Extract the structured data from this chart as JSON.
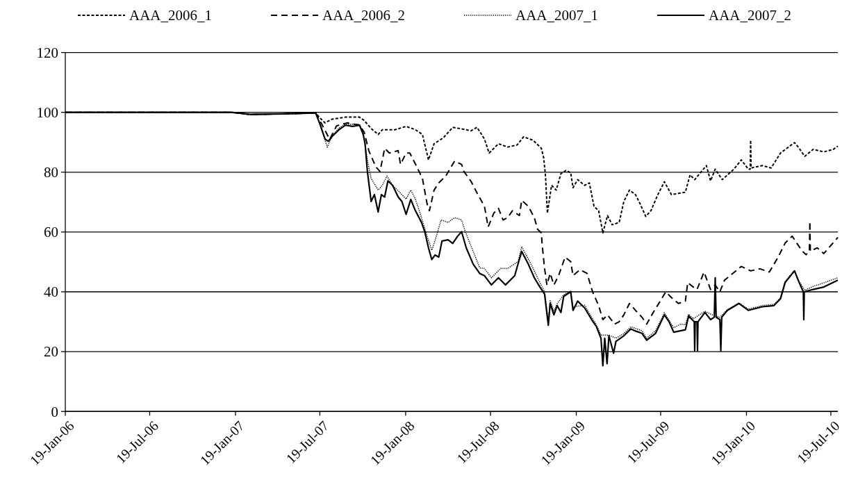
{
  "chart_data": {
    "type": "line",
    "xlim": [
      "2006-01-19",
      "2010-08-03"
    ],
    "xticks": [
      {
        "value": "2006-01-19",
        "label": "19-Jan-06"
      },
      {
        "value": "2006-07-19",
        "label": "19-Jul-06"
      },
      {
        "value": "2007-01-19",
        "label": "19-Jan-07"
      },
      {
        "value": "2007-07-19",
        "label": "19-Jul-07"
      },
      {
        "value": "2008-01-19",
        "label": "19-Jan-08"
      },
      {
        "value": "2008-07-19",
        "label": "19-Jul-08"
      },
      {
        "value": "2009-01-19",
        "label": "19-Jan-09"
      },
      {
        "value": "2009-07-19",
        "label": "19-Jul-09"
      },
      {
        "value": "2010-01-19",
        "label": "19-Jan-10"
      },
      {
        "value": "2010-07-19",
        "label": "19-Jul-10"
      }
    ],
    "ylim": [
      0,
      120
    ],
    "yticks": [
      0,
      20,
      40,
      60,
      80,
      100,
      120
    ],
    "grid": "y",
    "legend": "top",
    "series": [
      {
        "name": "AAA_2006_1",
        "color": "#000000",
        "line_style": "dashed",
        "x": [
          "2006-01-19",
          "2007-01-10",
          "2007-02-20",
          "2007-05-01",
          "2007-07-10",
          "2007-07-20",
          "2007-07-30",
          "2007-08-14",
          "2007-09-12",
          "2007-10-12",
          "2007-10-22",
          "2007-11-06",
          "2007-11-21",
          "2007-11-30",
          "2007-12-27",
          "2008-01-20",
          "2008-02-09",
          "2008-02-24",
          "2008-03-08",
          "2008-03-20",
          "2008-04-09",
          "2008-04-29",
          "2008-05-28",
          "2008-06-07",
          "2008-06-20",
          "2008-06-30",
          "2008-07-06",
          "2008-07-16",
          "2008-08-05",
          "2008-08-25",
          "2008-09-14",
          "2008-09-28",
          "2008-10-18",
          "2008-11-05",
          "2008-11-10",
          "2008-11-14",
          "2008-11-18",
          "2008-11-27",
          "2008-12-07",
          "2008-12-17",
          "2008-12-28",
          "2009-01-07",
          "2009-01-12",
          "2009-01-22",
          "2009-02-06",
          "2009-02-16",
          "2009-02-26",
          "2009-03-08",
          "2009-03-17",
          "2009-03-27",
          "2009-04-06",
          "2009-04-21",
          "2009-05-01",
          "2009-05-13",
          "2009-05-26",
          "2009-06-05",
          "2009-06-17",
          "2009-06-28",
          "2009-07-13",
          "2009-07-27",
          "2009-08-11",
          "2009-09-10",
          "2009-09-20",
          "2009-09-30",
          "2009-10-25",
          "2009-11-03",
          "2009-11-13",
          "2009-11-28",
          "2009-12-23",
          "2010-01-08",
          "2010-01-23",
          "2010-01-27",
          "2010-01-28",
          "2010-01-29",
          "2010-02-22",
          "2010-03-13",
          "2010-04-02",
          "2010-05-02",
          "2010-05-12",
          "2010-05-24",
          "2010-06-11",
          "2010-07-04",
          "2010-07-24",
          "2010-08-03"
        ],
        "values": [
          100,
          100,
          99.3,
          99.5,
          99.8,
          98,
          96.5,
          97.7,
          98.4,
          98.4,
          97.3,
          94.6,
          92.6,
          94.2,
          94.2,
          95.3,
          94.2,
          92.6,
          84.1,
          89.5,
          91.5,
          95,
          94.2,
          93.8,
          95,
          92.6,
          91.1,
          86.4,
          89.5,
          88.4,
          89.1,
          91.8,
          90.7,
          88,
          84.9,
          78.7,
          66.3,
          75.6,
          74,
          79.5,
          80.6,
          79.8,
          74.8,
          77.5,
          75.6,
          76.4,
          68.6,
          67.1,
          59.7,
          65.5,
          62.4,
          63.2,
          70.2,
          74,
          72.5,
          69.4,
          65.2,
          67.1,
          72.5,
          76.8,
          72.5,
          73.3,
          79.1,
          77.5,
          82.2,
          77.1,
          81,
          77.5,
          81,
          84.1,
          81,
          81,
          90.7,
          81.4,
          82.2,
          81.4,
          86.4,
          89.9,
          88,
          85.3,
          87.6,
          86.8,
          87.6,
          88.7
        ]
      },
      {
        "name": "AAA_2006_2",
        "color": "#000000",
        "line_style": "dashed",
        "x": [
          "2006-01-19",
          "2007-01-10",
          "2007-02-20",
          "2007-05-01",
          "2007-07-10",
          "2007-07-20",
          "2007-07-30",
          "2007-08-09",
          "2007-08-24",
          "2007-09-17",
          "2007-10-12",
          "2007-10-22",
          "2007-11-01",
          "2007-11-16",
          "2007-11-25",
          "2007-12-05",
          "2007-12-15",
          "2008-01-03",
          "2008-01-08",
          "2008-01-20",
          "2008-01-28",
          "2008-02-12",
          "2008-02-24",
          "2008-03-05",
          "2008-03-10",
          "2008-03-20",
          "2008-03-30",
          "2008-04-14",
          "2008-05-03",
          "2008-05-18",
          "2008-05-23",
          "2008-06-07",
          "2008-06-22",
          "2008-07-06",
          "2008-07-14",
          "2008-07-26",
          "2008-08-05",
          "2008-08-15",
          "2008-08-25",
          "2008-09-04",
          "2008-09-19",
          "2008-09-24",
          "2008-10-08",
          "2008-10-21",
          "2008-10-28",
          "2008-11-05",
          "2008-11-07",
          "2008-11-12",
          "2008-11-17",
          "2008-11-24",
          "2008-12-02",
          "2008-12-12",
          "2008-12-26",
          "2009-01-07",
          "2009-01-12",
          "2009-01-27",
          "2009-02-11",
          "2009-02-23",
          "2009-03-08",
          "2009-03-17",
          "2009-03-27",
          "2009-04-11",
          "2009-04-21",
          "2009-05-01",
          "2009-05-13",
          "2009-05-26",
          "2009-06-09",
          "2009-06-19",
          "2009-07-03",
          "2009-07-18",
          "2009-07-30",
          "2009-08-11",
          "2009-08-26",
          "2009-09-10",
          "2009-09-15",
          "2009-09-30",
          "2009-10-05",
          "2009-10-20",
          "2009-11-03",
          "2009-11-13",
          "2009-11-23",
          "2009-12-03",
          "2009-12-18",
          "2010-01-08",
          "2010-01-28",
          "2010-02-17",
          "2010-03-09",
          "2010-03-28",
          "2010-04-12",
          "2010-04-27",
          "2010-05-07",
          "2010-05-17",
          "2010-05-27",
          "2010-06-03",
          "2010-06-04",
          "2010-06-05",
          "2010-06-20",
          "2010-07-04",
          "2010-07-19",
          "2010-08-03"
        ],
        "values": [
          100,
          100,
          99.3,
          99.5,
          99.8,
          97,
          94,
          91,
          95.5,
          96.5,
          95.7,
          93.4,
          87.2,
          81.8,
          80.2,
          88,
          86.4,
          87.2,
          82.6,
          86.4,
          86.4,
          81.8,
          77.9,
          69.4,
          67.1,
          74,
          76.4,
          78.7,
          83.7,
          82.6,
          80.2,
          77,
          72.5,
          68.6,
          61.7,
          66.3,
          67.9,
          64,
          64.8,
          67.1,
          65.5,
          70.6,
          68.6,
          64.8,
          60.9,
          59.7,
          55.5,
          47.8,
          42.3,
          46.2,
          42.3,
          45.4,
          51.6,
          50.1,
          45.4,
          47.4,
          46.2,
          40,
          35.4,
          30.7,
          32.3,
          29.2,
          30,
          32.3,
          36.1,
          33.8,
          31.5,
          29.2,
          33.1,
          36.9,
          40,
          38.1,
          36.1,
          36.9,
          43.1,
          41.2,
          40.8,
          46.6,
          40.8,
          42.3,
          40,
          43.9,
          45.8,
          48.5,
          47,
          47.7,
          46.6,
          51.6,
          56.3,
          58.6,
          56.3,
          53.9,
          52.4,
          53.6,
          63.6,
          53.6,
          54.7,
          52.8,
          55.5,
          58.2
        ]
      },
      {
        "name": "AAA_2007_1",
        "color": "#000000",
        "line_style": "dotted",
        "x": [
          "2006-01-19",
          "2007-01-10",
          "2007-02-20",
          "2007-05-01",
          "2007-07-10",
          "2007-07-20",
          "2007-08-04",
          "2007-08-14",
          "2007-08-29",
          "2007-09-12",
          "2007-10-12",
          "2007-10-20",
          "2007-10-29",
          "2007-11-06",
          "2007-11-21",
          "2007-11-30",
          "2007-12-10",
          "2007-12-22",
          "2008-01-06",
          "2008-01-20",
          "2008-01-30",
          "2008-02-09",
          "2008-02-22",
          "2008-03-05",
          "2008-03-15",
          "2008-03-25",
          "2008-04-04",
          "2008-04-19",
          "2008-05-03",
          "2008-05-18",
          "2008-05-26",
          "2008-06-07",
          "2008-06-26",
          "2008-07-06",
          "2008-07-21",
          "2008-08-10",
          "2008-08-25",
          "2008-09-16",
          "2008-09-24",
          "2008-10-13",
          "2008-11-02",
          "2008-11-12",
          "2008-11-20",
          "2008-11-24",
          "2008-12-02",
          "2008-12-09",
          "2008-12-23",
          "2009-01-07",
          "2009-01-12",
          "2009-02-06",
          "2009-02-21",
          "2009-03-03",
          "2009-03-13",
          "2009-03-30",
          "2009-04-14",
          "2009-05-01",
          "2009-05-16",
          "2009-06-09",
          "2009-06-19",
          "2009-07-08",
          "2009-07-27",
          "2009-08-16",
          "2009-08-31",
          "2009-09-10",
          "2009-09-17",
          "2009-09-27",
          "2009-10-22",
          "2009-11-11",
          "2009-11-23",
          "2009-12-09",
          "2010-01-03",
          "2010-01-23",
          "2010-02-22",
          "2010-03-19",
          "2010-04-02",
          "2010-04-12",
          "2010-05-02",
          "2010-05-12",
          "2010-05-24",
          "2010-06-11",
          "2010-07-04",
          "2010-08-03"
        ],
        "values": [
          100,
          100,
          99.3,
          99.5,
          99.8,
          95.7,
          88.4,
          91.9,
          94.8,
          96,
          96,
          93,
          84,
          77.9,
          74,
          75.6,
          78.7,
          75.6,
          73.3,
          71,
          74,
          71,
          64.8,
          58.6,
          53.9,
          58.6,
          64,
          63.2,
          64.8,
          64,
          60.1,
          55.4,
          48,
          47.8,
          44.7,
          47.8,
          47.8,
          50.1,
          55.1,
          49.5,
          43.1,
          40,
          30,
          37,
          33.5,
          36,
          39,
          40.3,
          35,
          35.5,
          31.5,
          29,
          25.5,
          25.5,
          24.5,
          26,
          28.3,
          27,
          24.5,
          27,
          33,
          28,
          29.2,
          29,
          32.5,
          31,
          33.5,
          32,
          31.5,
          34,
          36.3,
          34.2,
          35.4,
          35.8,
          38,
          43.5,
          47.2,
          43.5,
          40.5,
          41.8,
          43,
          44.7
        ]
      },
      {
        "name": "AAA_2007_2",
        "color": "#000000",
        "line_style": "solid",
        "x": [
          "2006-01-19",
          "2007-01-10",
          "2007-02-20",
          "2007-05-01",
          "2007-07-10",
          "2007-07-20",
          "2007-07-30",
          "2007-08-06",
          "2007-08-14",
          "2007-08-29",
          "2007-09-12",
          "2007-09-27",
          "2007-10-12",
          "2007-10-20",
          "2007-10-24",
          "2007-10-29",
          "2007-11-06",
          "2007-11-13",
          "2007-11-21",
          "2007-11-28",
          "2007-12-05",
          "2007-12-12",
          "2007-12-22",
          "2008-01-03",
          "2008-01-11",
          "2008-01-20",
          "2008-01-30",
          "2008-02-09",
          "2008-02-22",
          "2008-02-29",
          "2008-03-08",
          "2008-03-15",
          "2008-03-22",
          "2008-03-30",
          "2008-04-06",
          "2008-04-19",
          "2008-04-29",
          "2008-05-09",
          "2008-05-18",
          "2008-05-28",
          "2008-06-12",
          "2008-06-26",
          "2008-07-06",
          "2008-07-21",
          "2008-08-05",
          "2008-08-20",
          "2008-09-09",
          "2008-09-16",
          "2008-09-24",
          "2008-10-08",
          "2008-10-21",
          "2008-11-02",
          "2008-11-12",
          "2008-11-20",
          "2008-11-24",
          "2008-12-02",
          "2008-12-09",
          "2008-12-17",
          "2008-12-23",
          "2009-01-07",
          "2009-01-12",
          "2009-01-22",
          "2009-02-06",
          "2009-02-21",
          "2009-03-03",
          "2009-03-13",
          "2009-03-17",
          "2009-03-21",
          "2009-03-26",
          "2009-03-30",
          "2009-04-09",
          "2009-04-14",
          "2009-05-01",
          "2009-05-16",
          "2009-05-26",
          "2009-06-09",
          "2009-06-19",
          "2009-07-08",
          "2009-07-27",
          "2009-08-06",
          "2009-08-16",
          "2009-09-10",
          "2009-09-17",
          "2009-09-29",
          "2009-09-30",
          "2009-10-01",
          "2009-10-05",
          "2009-10-06",
          "2009-10-07",
          "2009-10-22",
          "2009-11-03",
          "2009-11-11",
          "2009-11-13",
          "2009-11-15",
          "2009-11-23",
          "2009-11-25",
          "2009-11-27",
          "2009-12-09",
          "2010-01-03",
          "2010-01-23",
          "2010-02-22",
          "2010-03-19",
          "2010-04-02",
          "2010-04-12",
          "2010-05-02",
          "2010-05-12",
          "2010-05-21",
          "2010-05-22",
          "2010-05-23",
          "2010-06-11",
          "2010-07-04",
          "2010-08-03"
        ],
        "values": [
          100,
          100,
          99.3,
          99.5,
          99.8,
          95.7,
          91.1,
          90.3,
          91.9,
          94.2,
          95.7,
          95.3,
          95.7,
          92.6,
          89.5,
          80.2,
          70.2,
          72.5,
          66.7,
          72.5,
          71.7,
          77.1,
          75.6,
          71.7,
          70.2,
          65.9,
          70.9,
          67.1,
          63.2,
          60.1,
          54.7,
          50.8,
          52.3,
          51.6,
          57,
          57.4,
          56.2,
          58.5,
          60.1,
          54.7,
          49.2,
          46.1,
          45.4,
          42.3,
          44.7,
          42.3,
          45.4,
          49.3,
          53.5,
          49.3,
          44.7,
          41.6,
          39.2,
          28.8,
          36.1,
          32.3,
          35.4,
          33.1,
          38.5,
          40,
          33.8,
          36.9,
          34.6,
          30.7,
          28.4,
          24.5,
          15.3,
          24.5,
          16,
          25.3,
          19.5,
          23.4,
          25.3,
          27.6,
          26.9,
          26.1,
          23.8,
          26.1,
          32.3,
          30,
          26.5,
          27.3,
          31.9,
          30,
          20.3,
          30,
          30,
          20.3,
          30,
          33.1,
          30.7,
          31.5,
          44.7,
          31.5,
          30.7,
          20.3,
          31.5,
          33.8,
          36.1,
          33.8,
          35,
          35.4,
          37.7,
          43.1,
          47,
          43.1,
          40,
          30.7,
          40,
          40.8,
          41.6,
          43.9
        ]
      }
    ]
  }
}
